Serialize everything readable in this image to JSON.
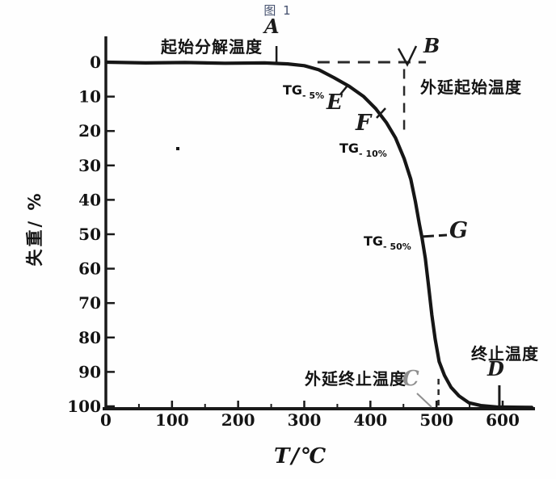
{
  "colors": {
    "curve": "#161616",
    "axis": "#1a1a1a",
    "dashed_guide": "#2a2a2a",
    "title_text": "#44506e",
    "faded_marker": "#8f8f8f"
  },
  "chart_data": {
    "type": "line",
    "title": "图 1",
    "xlabel": "T/℃",
    "ylabel": "失重/ %",
    "xlim": [
      0,
      650
    ],
    "ylim": [
      0,
      100
    ],
    "y_direction": "increases-downward",
    "grid": false,
    "x_ticks": [
      0,
      100,
      200,
      300,
      400,
      500,
      600
    ],
    "y_ticks": [
      0,
      10,
      20,
      30,
      40,
      50,
      60,
      70,
      80,
      90,
      100
    ],
    "series": [
      {
        "name": "TG curve",
        "points": [
          [
            2,
            0
          ],
          [
            60,
            0.2
          ],
          [
            120,
            0.1
          ],
          [
            180,
            0.3
          ],
          [
            240,
            0.2
          ],
          [
            275,
            0.5
          ],
          [
            300,
            1.0
          ],
          [
            322,
            2.2
          ],
          [
            345,
            4.5
          ],
          [
            368,
            7.0
          ],
          [
            390,
            10.0
          ],
          [
            408,
            13.5
          ],
          [
            424,
            17.5
          ],
          [
            438,
            22.0
          ],
          [
            451,
            28.0
          ],
          [
            461,
            34.0
          ],
          [
            468,
            40.5
          ],
          [
            474,
            47.0
          ],
          [
            478,
            51.0
          ],
          [
            483,
            57.0
          ],
          [
            488,
            65.0
          ],
          [
            493,
            73.5
          ],
          [
            498,
            80.5
          ],
          [
            504,
            87.0
          ],
          [
            512,
            91.0
          ],
          [
            522,
            94.5
          ],
          [
            534,
            97.0
          ],
          [
            549,
            99.0
          ],
          [
            567,
            99.8
          ],
          [
            591,
            100.2
          ],
          [
            644,
            100.3
          ]
        ]
      }
    ],
    "annotations": {
      "A": {
        "letter": "A",
        "label": "起始分解温度",
        "T": 258,
        "loss": 0
      },
      "B": {
        "letter": "B",
        "label": "外延起始温度",
        "T": 451,
        "loss": 0
      },
      "E": {
        "letter": "E",
        "label_main": "TG",
        "label_sub": "- 5%",
        "T": 351,
        "loss": 5
      },
      "F": {
        "letter": "F",
        "label_main": "TG",
        "label_sub": "- 10%",
        "T": 393,
        "loss": 10
      },
      "G": {
        "letter": "G",
        "label_main": "TG",
        "label_sub": "- 50%",
        "T": 477,
        "loss": 50
      },
      "C": {
        "letter": "C",
        "label": "外延终止温度",
        "T": 503,
        "loss": 100
      },
      "D": {
        "letter": "D",
        "label": "终止温度",
        "T": 595,
        "loss": 100
      }
    }
  }
}
